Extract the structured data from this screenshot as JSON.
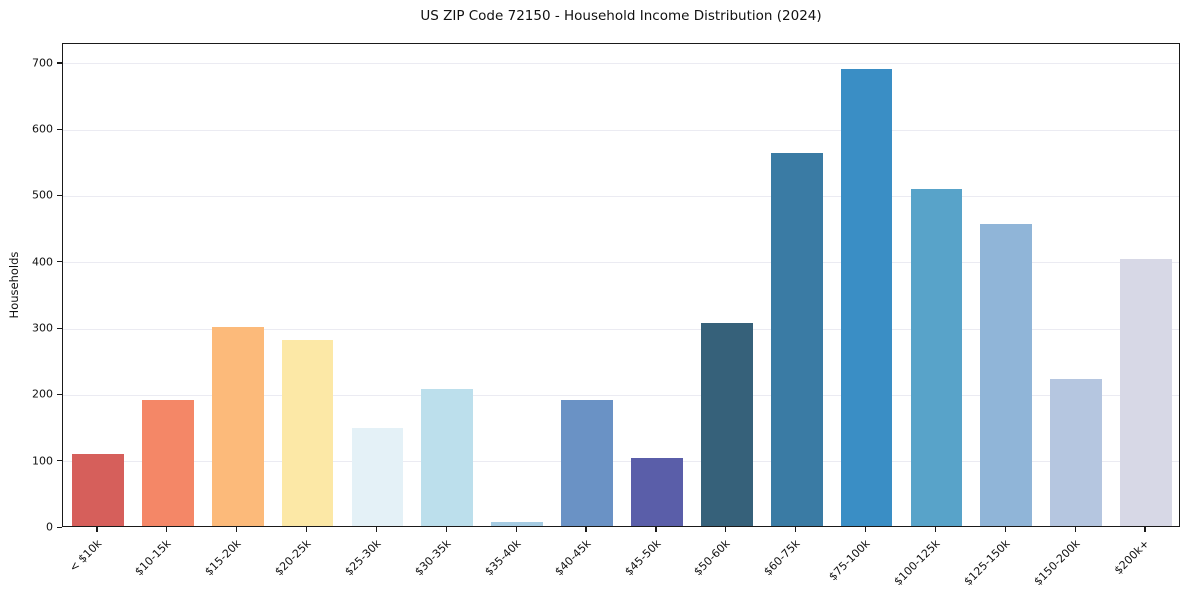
{
  "chart_data": {
    "type": "bar",
    "title": "US ZIP Code 72150 - Household Income Distribution (2024)",
    "xlabel": "",
    "ylabel": "Households",
    "categories": [
      "< $10k",
      "$10-15k",
      "$15-20k",
      "$20-25k",
      "$25-30k",
      "$30-35k",
      "$35-40k",
      "$40-45k",
      "$45-50k",
      "$50-60k",
      "$60-75k",
      "$75-100k",
      "$100-125k",
      "$125-150k",
      "$150-200k",
      "$200k+"
    ],
    "values": [
      108,
      190,
      300,
      280,
      148,
      206,
      6,
      190,
      102,
      306,
      562,
      690,
      508,
      456,
      222,
      403
    ],
    "bar_colors": [
      "#d65f5b",
      "#f48767",
      "#fcba7a",
      "#fce8a6",
      "#e4f1f7",
      "#bcdfec",
      "#a5cbe2",
      "#6a92c5",
      "#5a5ea9",
      "#36617a",
      "#3a7ba4",
      "#3a8ec5",
      "#58a3c9",
      "#90b5d8",
      "#b5c6e0",
      "#d7d8e6"
    ],
    "ylim": [
      0,
      730
    ],
    "yticks": [
      0,
      100,
      200,
      300,
      400,
      500,
      600,
      700
    ],
    "grid": true,
    "grid_color": "#ebebf2",
    "spine_color": "#1a1a1a",
    "background_color": "#ffffff",
    "legend": "none",
    "x_tick_label_rotation": 45
  }
}
